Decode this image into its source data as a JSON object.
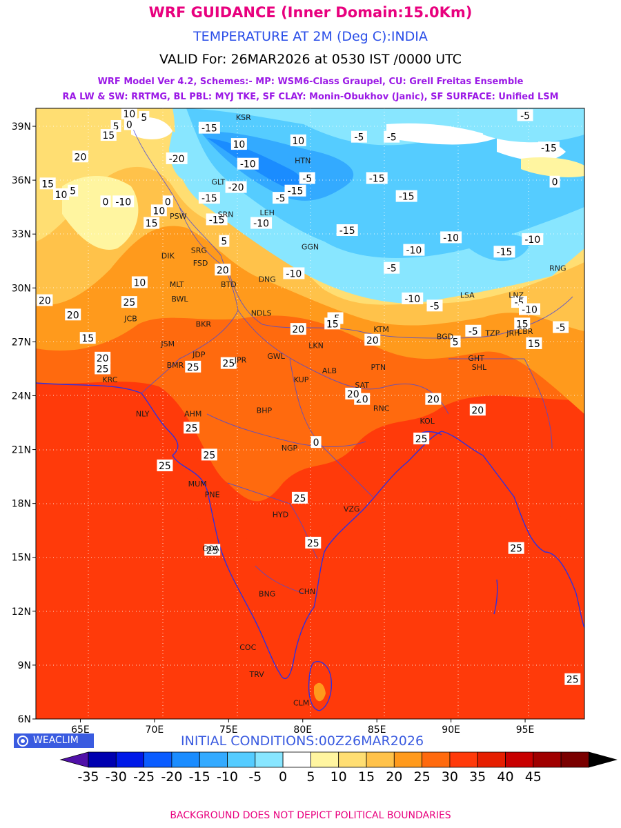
{
  "header": {
    "title": "WRF GUIDANCE (Inner Domain:15.0Km)",
    "subtitle": "TEMPERATURE AT 2M (Deg C):INDIA",
    "valid": "VALID For: 26MAR2026 at 0530 IST /0000 UTC",
    "schemes_line1": "WRF Model Ver 4.2, Schemes:- MP: WSM6-Class Graupel, CU: Grell Freitas Ensemble",
    "schemes_line2": "RA LW & SW: RRTMG, BL PBL: MYJ TKE, SF CLAY: Monin-Obukhov (Janic), SF SURFACE: Unified LSM"
  },
  "map": {
    "lon_ticks": [
      "65E",
      "70E",
      "75E",
      "80E",
      "85E",
      "90E",
      "95E"
    ],
    "lat_ticks": [
      "39N",
      "36N",
      "33N",
      "30N",
      "27N",
      "24N",
      "21N",
      "18N",
      "15N",
      "12N",
      "9N",
      "6N"
    ],
    "grid_lines": "dotted",
    "extent": {
      "lon_min": 62,
      "lon_max": 99,
      "lat_min": 6,
      "lat_max": 40
    },
    "city_labels": [
      {
        "name": "KSR",
        "lon": 76.0,
        "lat": 39.5
      },
      {
        "name": "HTN",
        "lon": 80.0,
        "lat": 37.1
      },
      {
        "name": "GLT",
        "lon": 74.3,
        "lat": 35.9
      },
      {
        "name": "LEH",
        "lon": 77.6,
        "lat": 34.2
      },
      {
        "name": "SRN",
        "lon": 74.8,
        "lat": 34.1
      },
      {
        "name": "PSW",
        "lon": 71.6,
        "lat": 34.0
      },
      {
        "name": "GGN",
        "lon": 80.5,
        "lat": 32.3
      },
      {
        "name": "DIK",
        "lon": 70.9,
        "lat": 31.8
      },
      {
        "name": "SRG",
        "lon": 73.0,
        "lat": 32.1
      },
      {
        "name": "FSD",
        "lon": 73.1,
        "lat": 31.4
      },
      {
        "name": "MLT",
        "lon": 71.5,
        "lat": 30.2
      },
      {
        "name": "BWL",
        "lon": 71.7,
        "lat": 29.4
      },
      {
        "name": "BTD",
        "lon": 75.0,
        "lat": 30.2
      },
      {
        "name": "DNG",
        "lon": 77.6,
        "lat": 30.5
      },
      {
        "name": "NDLS",
        "lon": 77.2,
        "lat": 28.6
      },
      {
        "name": "JCB",
        "lon": 68.4,
        "lat": 28.3
      },
      {
        "name": "BKR",
        "lon": 73.3,
        "lat": 28.0
      },
      {
        "name": "JSM",
        "lon": 70.9,
        "lat": 26.9
      },
      {
        "name": "JDP",
        "lon": 73.0,
        "lat": 26.3
      },
      {
        "name": "BMR",
        "lon": 71.4,
        "lat": 25.7
      },
      {
        "name": "JPR",
        "lon": 75.8,
        "lat": 26.0
      },
      {
        "name": "GWL",
        "lon": 78.2,
        "lat": 26.2
      },
      {
        "name": "LKN",
        "lon": 80.9,
        "lat": 26.8
      },
      {
        "name": "KTM",
        "lon": 85.3,
        "lat": 27.7
      },
      {
        "name": "BGD",
        "lon": 89.6,
        "lat": 27.3
      },
      {
        "name": "TZP",
        "lon": 92.8,
        "lat": 27.5
      },
      {
        "name": "JRH",
        "lon": 94.2,
        "lat": 27.5
      },
      {
        "name": "GHT",
        "lon": 91.7,
        "lat": 26.1
      },
      {
        "name": "SHL",
        "lon": 91.9,
        "lat": 25.6
      },
      {
        "name": "PTN",
        "lon": 85.1,
        "lat": 25.6
      },
      {
        "name": "ALB",
        "lon": 81.8,
        "lat": 25.4
      },
      {
        "name": "KUP",
        "lon": 79.9,
        "lat": 24.9
      },
      {
        "name": "SAT",
        "lon": 84.0,
        "lat": 24.6
      },
      {
        "name": "KRC",
        "lon": 67.0,
        "lat": 24.9
      },
      {
        "name": "NLY",
        "lon": 69.2,
        "lat": 23.0
      },
      {
        "name": "AHM",
        "lon": 72.6,
        "lat": 23.0
      },
      {
        "name": "BHP",
        "lon": 77.4,
        "lat": 23.2
      },
      {
        "name": "RNC",
        "lon": 85.3,
        "lat": 23.3
      },
      {
        "name": "KOL",
        "lon": 88.4,
        "lat": 22.6
      },
      {
        "name": "NGP",
        "lon": 79.1,
        "lat": 21.1
      },
      {
        "name": "MUM",
        "lon": 72.9,
        "lat": 19.1
      },
      {
        "name": "PNE",
        "lon": 73.9,
        "lat": 18.5
      },
      {
        "name": "HYD",
        "lon": 78.5,
        "lat": 17.4
      },
      {
        "name": "VZG",
        "lon": 83.3,
        "lat": 17.7
      },
      {
        "name": "GOA",
        "lon": 73.8,
        "lat": 15.5
      },
      {
        "name": "BNG",
        "lon": 77.6,
        "lat": 12.97
      },
      {
        "name": "CHN",
        "lon": 80.3,
        "lat": 13.1
      },
      {
        "name": "COC",
        "lon": 76.3,
        "lat": 10.0
      },
      {
        "name": "TRV",
        "lon": 76.9,
        "lat": 8.5
      },
      {
        "name": "CLM",
        "lon": 79.9,
        "lat": 6.9
      },
      {
        "name": "LSA",
        "lon": 91.1,
        "lat": 29.6
      },
      {
        "name": "LNZ",
        "lon": 94.4,
        "lat": 29.6
      },
      {
        "name": "RNG",
        "lon": 97.2,
        "lat": 31.1
      },
      {
        "name": "CBR",
        "lon": 95.0,
        "lat": 27.6
      }
    ]
  },
  "contour_labels": [
    {
      "text": "10",
      "lon": 68.3,
      "lat": 39.7
    },
    {
      "text": "5",
      "lon": 67.4,
      "lat": 39.0
    },
    {
      "text": "0",
      "lon": 68.3,
      "lat": 39.1
    },
    {
      "text": "5",
      "lon": 69.3,
      "lat": 39.5
    },
    {
      "text": "15",
      "lon": 66.9,
      "lat": 38.5
    },
    {
      "text": "20",
      "lon": 65.0,
      "lat": 37.3
    },
    {
      "text": "15",
      "lon": 62.8,
      "lat": 35.8
    },
    {
      "text": "10",
      "lon": 63.7,
      "lat": 35.2
    },
    {
      "text": "5",
      "lon": 64.5,
      "lat": 35.4
    },
    {
      "text": "0",
      "lon": 66.7,
      "lat": 34.8
    },
    {
      "text": "-10",
      "lon": 67.9,
      "lat": 34.8
    },
    {
      "text": "15",
      "lon": 69.8,
      "lat": 33.6
    },
    {
      "text": "10",
      "lon": 70.3,
      "lat": 34.3
    },
    {
      "text": "0",
      "lon": 70.9,
      "lat": 34.8
    },
    {
      "text": "-20",
      "lon": 71.5,
      "lat": 37.2
    },
    {
      "text": "-15",
      "lon": 73.7,
      "lat": 38.9
    },
    {
      "text": "-10",
      "lon": 76.3,
      "lat": 36.9
    },
    {
      "text": "-15",
      "lon": 73.7,
      "lat": 35.0
    },
    {
      "text": "-20",
      "lon": 75.5,
      "lat": 35.6
    },
    {
      "text": "-15",
      "lon": 74.2,
      "lat": 33.8
    },
    {
      "text": "-10",
      "lon": 77.2,
      "lat": 33.6
    },
    {
      "text": "5",
      "lon": 74.7,
      "lat": 32.6
    },
    {
      "text": "10",
      "lon": 75.7,
      "lat": 38.0
    },
    {
      "text": "10",
      "lon": 79.7,
      "lat": 38.2
    },
    {
      "text": "-5",
      "lon": 78.5,
      "lat": 35.0
    },
    {
      "text": "-15",
      "lon": 79.5,
      "lat": 35.4
    },
    {
      "text": "-5",
      "lon": 80.3,
      "lat": 36.1
    },
    {
      "text": "-15",
      "lon": 85.0,
      "lat": 36.1
    },
    {
      "text": "-15",
      "lon": 87.0,
      "lat": 35.1
    },
    {
      "text": "-15",
      "lon": 83.0,
      "lat": 33.2
    },
    {
      "text": "-10",
      "lon": 87.5,
      "lat": 32.1
    },
    {
      "text": "-10",
      "lon": 90.0,
      "lat": 32.8
    },
    {
      "text": "-15",
      "lon": 93.6,
      "lat": 32.0
    },
    {
      "text": "-10",
      "lon": 95.5,
      "lat": 32.7
    },
    {
      "text": "-5",
      "lon": 86.0,
      "lat": 31.1
    },
    {
      "text": "-10",
      "lon": 87.4,
      "lat": 29.4
    },
    {
      "text": "-10",
      "lon": 79.4,
      "lat": 30.8
    },
    {
      "text": "-5",
      "lon": 88.9,
      "lat": 29.0
    },
    {
      "text": "-5",
      "lon": 94.6,
      "lat": 29.2
    },
    {
      "text": "-10",
      "lon": 95.3,
      "lat": 28.8
    },
    {
      "text": "-5",
      "lon": 91.5,
      "lat": 27.6
    },
    {
      "text": "-5",
      "lon": 97.4,
      "lat": 27.8
    },
    {
      "text": "15",
      "lon": 94.8,
      "lat": 28.0
    },
    {
      "text": "15",
      "lon": 95.6,
      "lat": 26.9
    },
    {
      "text": "-5",
      "lon": 82.2,
      "lat": 28.3
    },
    {
      "text": "-5",
      "lon": 83.8,
      "lat": 38.4
    },
    {
      "text": "-5",
      "lon": 86.0,
      "lat": 38.4
    },
    {
      "text": "-5",
      "lon": 95.0,
      "lat": 39.6
    },
    {
      "text": "-15",
      "lon": 96.6,
      "lat": 37.8
    },
    {
      "text": "0",
      "lon": 97.0,
      "lat": 35.9
    },
    {
      "text": "15",
      "lon": 82.0,
      "lat": 28.0
    },
    {
      "text": "20",
      "lon": 79.7,
      "lat": 27.7
    },
    {
      "text": "20",
      "lon": 84.7,
      "lat": 27.1
    },
    {
      "text": "5",
      "lon": 90.3,
      "lat": 27.0
    },
    {
      "text": "20",
      "lon": 74.6,
      "lat": 31.0
    },
    {
      "text": "10",
      "lon": 69.0,
      "lat": 30.3
    },
    {
      "text": "20",
      "lon": 62.6,
      "lat": 29.3
    },
    {
      "text": "20",
      "lon": 64.5,
      "lat": 28.5
    },
    {
      "text": "15",
      "lon": 65.5,
      "lat": 27.2
    },
    {
      "text": "25",
      "lon": 68.3,
      "lat": 29.2
    },
    {
      "text": "20",
      "lon": 66.5,
      "lat": 26.1
    },
    {
      "text": "25",
      "lon": 66.5,
      "lat": 25.5
    },
    {
      "text": "25",
      "lon": 72.6,
      "lat": 25.6
    },
    {
      "text": "25",
      "lon": 75.0,
      "lat": 25.8
    },
    {
      "text": "25",
      "lon": 72.5,
      "lat": 22.2
    },
    {
      "text": "25",
      "lon": 70.7,
      "lat": 20.1
    },
    {
      "text": "25",
      "lon": 73.7,
      "lat": 20.7
    },
    {
      "text": "25",
      "lon": 79.8,
      "lat": 18.3
    },
    {
      "text": "25",
      "lon": 80.7,
      "lat": 15.8
    },
    {
      "text": "25",
      "lon": 73.9,
      "lat": 15.4
    },
    {
      "text": "25",
      "lon": 88.0,
      "lat": 21.6
    },
    {
      "text": "20",
      "lon": 84.0,
      "lat": 23.8
    },
    {
      "text": "20",
      "lon": 88.8,
      "lat": 23.8
    },
    {
      "text": "20",
      "lon": 91.8,
      "lat": 23.2
    },
    {
      "text": "25",
      "lon": 94.4,
      "lat": 15.5
    },
    {
      "text": "25",
      "lon": 98.2,
      "lat": 8.2
    },
    {
      "text": "0",
      "lon": 80.9,
      "lat": 21.4
    },
    {
      "text": "20",
      "lon": 83.4,
      "lat": 24.1
    }
  ],
  "legend": {
    "tick_labels": [
      "-35",
      "-30",
      "-25",
      "-20",
      "-15",
      "-10",
      "-5",
      "0",
      "5",
      "10",
      "15",
      "20",
      "25",
      "30",
      "35",
      "40",
      "45"
    ],
    "colors": [
      "#0000b0",
      "#0019e8",
      "#0a5cff",
      "#1a8cff",
      "#33aaff",
      "#55ccff",
      "#88e6ff",
      "#ffffff",
      "#fff5a0",
      "#ffde72",
      "#ffc24a",
      "#ff9a1c",
      "#ff6a0e",
      "#ff3a0a",
      "#e61e00",
      "#c80000",
      "#a00000",
      "#7a0000"
    ],
    "under_color": "#5010a8",
    "over_color": "#000000"
  },
  "initial_conditions": "INITIAL CONDITIONS:00Z26MAR2026",
  "brand": {
    "label": "WEACLIM",
    "icon": "globe-logo-icon"
  },
  "footer": "BACKGROUND DOES NOT DEPICT POLITICAL BOUNDARIES"
}
